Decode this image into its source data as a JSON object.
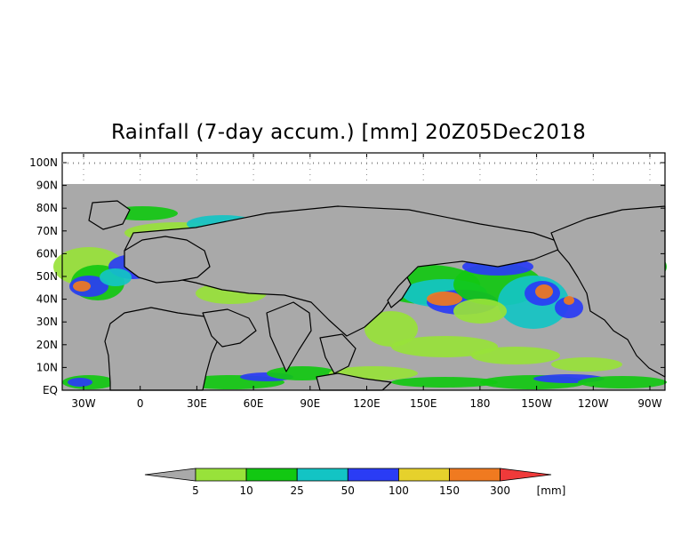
{
  "title": "Rainfall (7-day accum.) [mm] 20Z05Dec2018",
  "map": {
    "lat_labels": [
      "100N",
      "90N",
      "80N",
      "70N",
      "60N",
      "50N",
      "40N",
      "30N",
      "20N",
      "10N",
      "EQ"
    ],
    "lon_labels": [
      "30W",
      "0",
      "30E",
      "60E",
      "90E",
      "120E",
      "150E",
      "180",
      "150W",
      "120W",
      "90W"
    ],
    "no_data_color": "#a9a9a9",
    "coast_color": "#000000"
  },
  "legend": {
    "unit": "[mm]",
    "thresholds": [
      "5",
      "10",
      "25",
      "50",
      "100",
      "150",
      "300"
    ],
    "colors": {
      "below": "#a9a9a9",
      "bins": [
        "#98e23a",
        "#12c812",
        "#13c4c4",
        "#2a3cf5",
        "#e6d12c",
        "#f07a20"
      ],
      "above": "#f03a3a"
    }
  }
}
